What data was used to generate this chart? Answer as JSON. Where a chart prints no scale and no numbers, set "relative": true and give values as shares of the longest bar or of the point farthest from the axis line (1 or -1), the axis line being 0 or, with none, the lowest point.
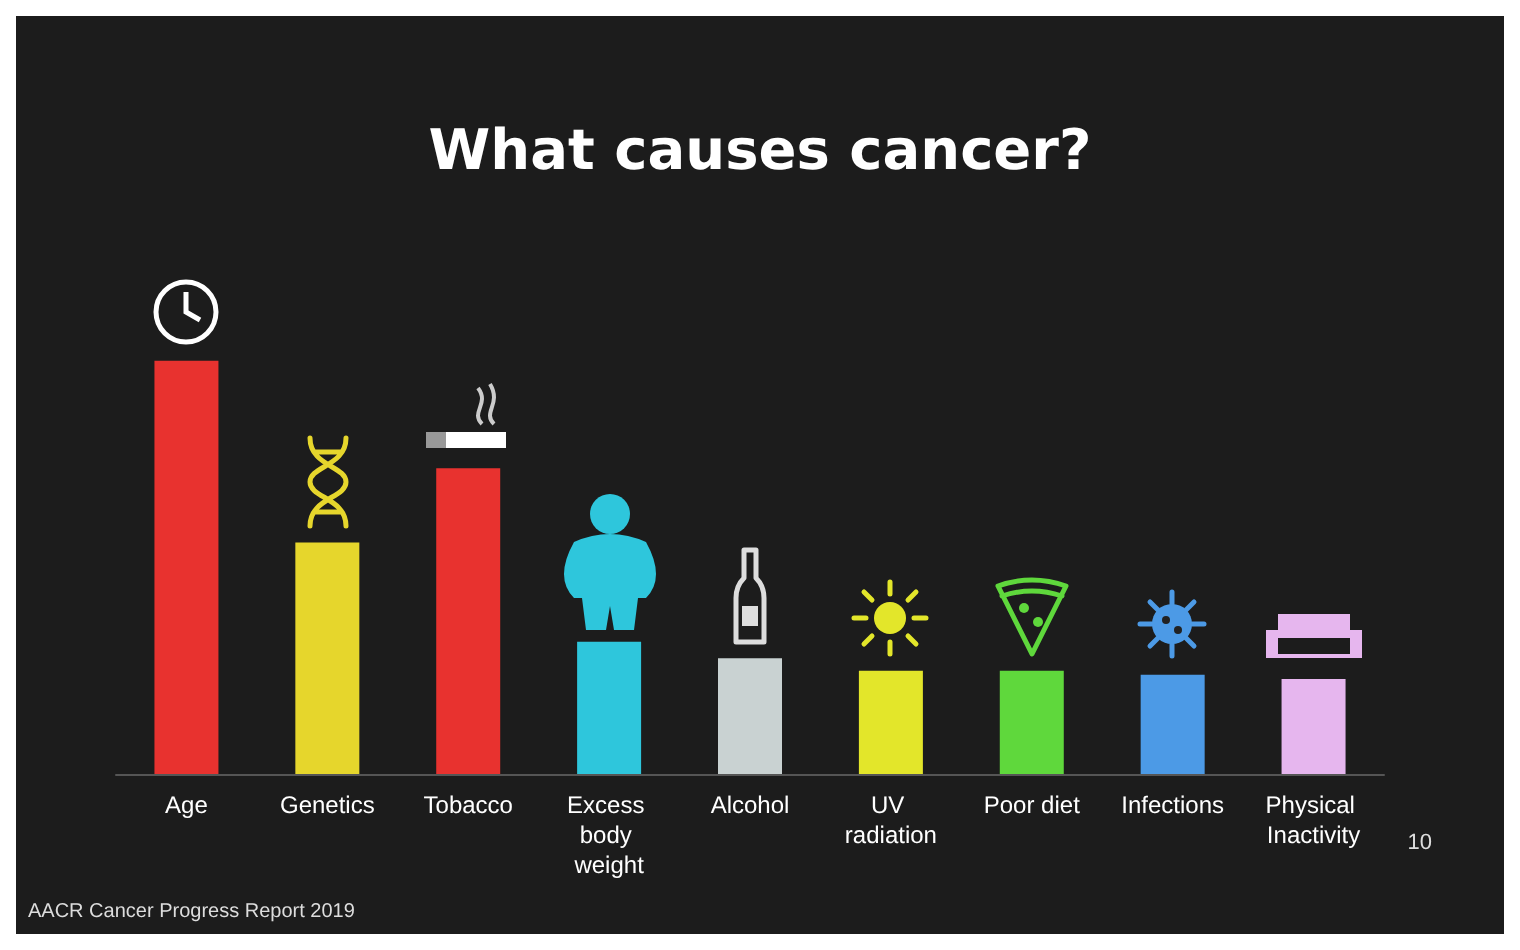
{
  "chart_data": {
    "type": "bar",
    "title": "What causes cancer?",
    "relative": true,
    "categories": [
      "Age",
      "Genetics",
      "Tobacco",
      "Excess body weight",
      "Alcohol",
      "UV radiation",
      "Poor diet",
      "Infections",
      "Physical Inactivity"
    ],
    "values": [
      1,
      0.56,
      0.74,
      0.32,
      0.28,
      0.25,
      0.25,
      0.24,
      0.23
    ],
    "colors": [
      "#e8322f",
      "#e6d62c",
      "#e8322f",
      "#2ec6dc",
      "#c9d2d2",
      "#e3e62a",
      "#5fd83c",
      "#4c9ae6",
      "#e6b6ee"
    ],
    "annotations": [
      "AACR Cancer Progress Report 2019",
      "10"
    ]
  }
}
